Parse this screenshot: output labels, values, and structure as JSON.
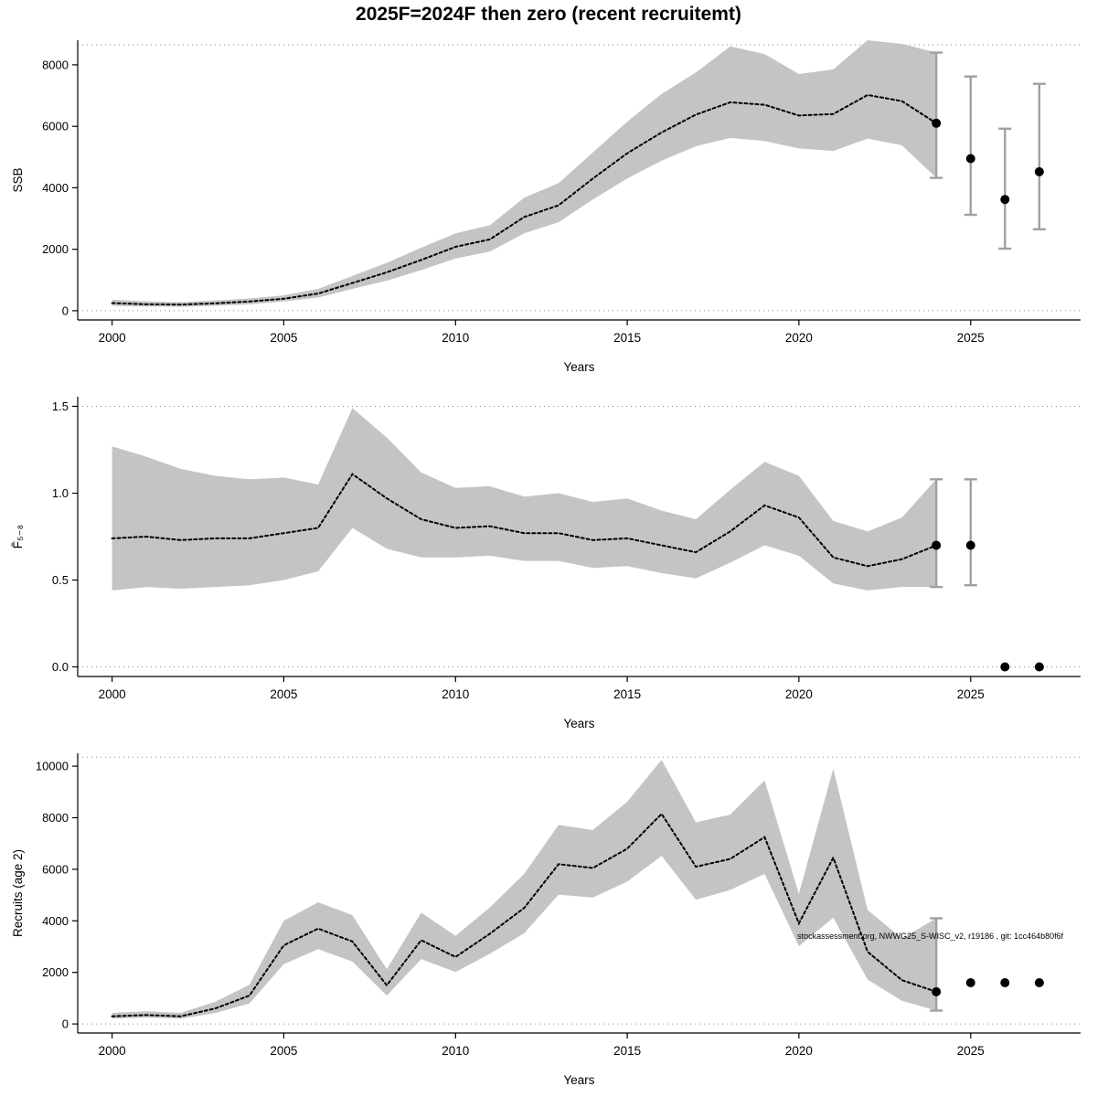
{
  "title": "2025F=2024F then zero (recent recruitemt)",
  "colors": {
    "band": "#c4c4c4",
    "line": "#000000",
    "point": "#000000",
    "errorbar": "#a0a0a0",
    "grid": "#888888",
    "axis": "#000000"
  },
  "chart_data": [
    {
      "type": "line",
      "ylabel": "SSB",
      "xlabel": "Years",
      "xlim": [
        1999,
        2028.2
      ],
      "ylim": [
        -300,
        8800
      ],
      "grid_y": [
        0,
        8650
      ],
      "xticks": [
        2000,
        2005,
        2010,
        2015,
        2020,
        2025
      ],
      "yticks": [
        0,
        2000,
        4000,
        6000,
        8000
      ],
      "ytick_labels": [
        "0",
        "2000",
        "4000",
        "6000",
        "8000"
      ],
      "x": [
        2000,
        2001,
        2002,
        2003,
        2004,
        2005,
        2006,
        2007,
        2008,
        2009,
        2010,
        2011,
        2012,
        2013,
        2014,
        2015,
        2016,
        2017,
        2018,
        2019,
        2020,
        2021,
        2022,
        2023,
        2024
      ],
      "values": [
        250,
        210,
        200,
        240,
        300,
        390,
        560,
        900,
        1250,
        1650,
        2080,
        2320,
        3050,
        3430,
        4300,
        5120,
        5800,
        6380,
        6780,
        6700,
        6350,
        6400,
        7020,
        6820,
        6100
      ],
      "lower": [
        160,
        140,
        130,
        160,
        210,
        300,
        430,
        710,
        980,
        1320,
        1700,
        1920,
        2520,
        2880,
        3620,
        4300,
        4880,
        5350,
        5620,
        5520,
        5280,
        5200,
        5600,
        5380,
        4320
      ],
      "upper": [
        360,
        300,
        280,
        330,
        400,
        500,
        710,
        1130,
        1560,
        2050,
        2520,
        2780,
        3680,
        4150,
        5150,
        6150,
        7050,
        7750,
        8600,
        8350,
        7700,
        7850,
        8800,
        8680,
        8400
      ],
      "points": [
        {
          "x": 2024,
          "y": 6100,
          "lo": 4320,
          "hi": 8400
        },
        {
          "x": 2025,
          "y": 4950,
          "lo": 3120,
          "hi": 7620
        },
        {
          "x": 2026,
          "y": 3620,
          "lo": 2020,
          "hi": 5920
        },
        {
          "x": 2027,
          "y": 4520,
          "lo": 2650,
          "hi": 7380
        }
      ]
    },
    {
      "type": "line",
      "ylabel": "F̄₅₋₈",
      "xlabel": "Years",
      "xlim": [
        1999,
        2028.2
      ],
      "ylim": [
        -0.055,
        1.555
      ],
      "grid_y": [
        0,
        1.5
      ],
      "xticks": [
        2000,
        2005,
        2010,
        2015,
        2020,
        2025
      ],
      "yticks": [
        0,
        0.5,
        1.0,
        1.5
      ],
      "ytick_labels": [
        "0.0",
        "0.5",
        "1.0",
        "1.5"
      ],
      "x": [
        2000,
        2001,
        2002,
        2003,
        2004,
        2005,
        2006,
        2007,
        2008,
        2009,
        2010,
        2011,
        2012,
        2013,
        2014,
        2015,
        2016,
        2017,
        2018,
        2019,
        2020,
        2021,
        2022,
        2023,
        2024
      ],
      "values": [
        0.74,
        0.75,
        0.73,
        0.74,
        0.74,
        0.77,
        0.8,
        1.11,
        0.97,
        0.85,
        0.8,
        0.81,
        0.77,
        0.77,
        0.73,
        0.74,
        0.7,
        0.66,
        0.78,
        0.93,
        0.86,
        0.63,
        0.58,
        0.62,
        0.7
      ],
      "lower": [
        0.44,
        0.46,
        0.45,
        0.46,
        0.47,
        0.5,
        0.55,
        0.8,
        0.68,
        0.63,
        0.63,
        0.64,
        0.61,
        0.61,
        0.57,
        0.58,
        0.54,
        0.51,
        0.6,
        0.7,
        0.64,
        0.48,
        0.44,
        0.46,
        0.46
      ],
      "upper": [
        1.27,
        1.21,
        1.14,
        1.1,
        1.08,
        1.09,
        1.05,
        1.49,
        1.32,
        1.12,
        1.03,
        1.04,
        0.98,
        1.0,
        0.95,
        0.97,
        0.9,
        0.85,
        1.02,
        1.18,
        1.1,
        0.84,
        0.78,
        0.86,
        1.08
      ],
      "points": [
        {
          "x": 2024,
          "y": 0.7,
          "lo": 0.46,
          "hi": 1.08
        },
        {
          "x": 2025,
          "y": 0.7,
          "lo": 0.47,
          "hi": 1.08
        },
        {
          "x": 2026,
          "y": 0.0
        },
        {
          "x": 2027,
          "y": 0.0
        }
      ]
    },
    {
      "type": "line",
      "ylabel": "Recruits (age 2)",
      "xlabel": "Years",
      "xlim": [
        1999,
        2028.2
      ],
      "ylim": [
        -350,
        10500
      ],
      "grid_y": [
        0,
        10350
      ],
      "xticks": [
        2000,
        2005,
        2010,
        2015,
        2020,
        2025
      ],
      "yticks": [
        0,
        2000,
        4000,
        6000,
        8000,
        10000
      ],
      "ytick_labels": [
        "0",
        "2000",
        "4000",
        "6000",
        "8000",
        "10000"
      ],
      "x": [
        2000,
        2001,
        2002,
        2003,
        2004,
        2005,
        2006,
        2007,
        2008,
        2009,
        2010,
        2011,
        2012,
        2013,
        2014,
        2015,
        2016,
        2017,
        2018,
        2019,
        2020,
        2021,
        2022,
        2023,
        2024
      ],
      "values": [
        300,
        350,
        300,
        600,
        1100,
        3050,
        3700,
        3200,
        1500,
        3250,
        2600,
        3500,
        4500,
        6200,
        6050,
        6800,
        8150,
        6100,
        6400,
        7250,
        3900,
        6450,
        2800,
        1700,
        1250
      ],
      "lower": [
        210,
        250,
        210,
        420,
        800,
        2320,
        2900,
        2420,
        1100,
        2520,
        2020,
        2720,
        3520,
        5020,
        4900,
        5520,
        6520,
        4820,
        5200,
        5820,
        3020,
        4120,
        1720,
        900,
        520
      ],
      "upper": [
        430,
        490,
        430,
        860,
        1520,
        4000,
        4720,
        4220,
        2120,
        4320,
        3420,
        4520,
        5820,
        7720,
        7520,
        8620,
        10250,
        7820,
        8120,
        9450,
        5050,
        9900,
        4420,
        3320,
        4100
      ],
      "points": [
        {
          "x": 2024,
          "y": 1250,
          "lo": 520,
          "hi": 4100
        },
        {
          "x": 2025,
          "y": 1600
        },
        {
          "x": 2026,
          "y": 1600
        },
        {
          "x": 2027,
          "y": 1600
        }
      ],
      "annotation": {
        "text": "stockassessment.org, NWWG25_S-WISC_v2, r19186 , git: 1cc464b80f6f",
        "x": 2027.7,
        "y": 3300
      }
    }
  ]
}
